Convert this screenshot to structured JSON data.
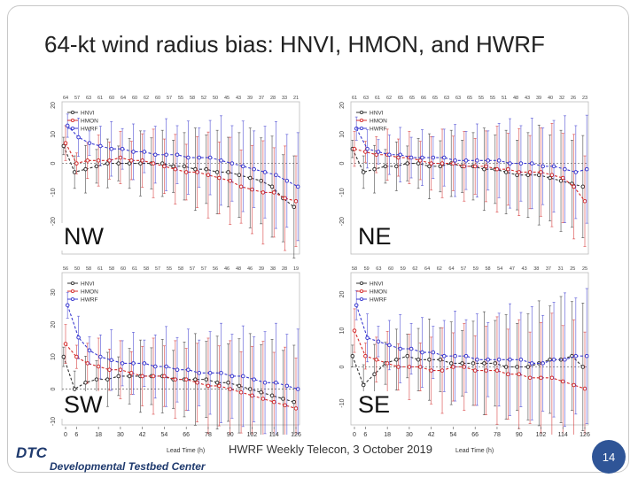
{
  "slide": {
    "title": "64-kt wind radius bias: HNVI, HMON, and HWRF",
    "footer": "HWRF Weekly Telecon, 3 October 2019",
    "page_number": "14",
    "logo_abbrev": "DTC",
    "logo_name": "Developmental Testbed Center",
    "lead_time_label": "Lead Time (h)"
  },
  "colors": {
    "HNVI": "#333333",
    "HMON": "#d42b2b",
    "HWRF": "#3a3ad0",
    "accent": "#2f5597"
  },
  "chart_data": [
    {
      "type": "line",
      "title": "NW",
      "x": [
        0,
        6,
        12,
        18,
        24,
        30,
        36,
        42,
        48,
        54,
        60,
        66,
        72,
        78,
        84,
        90,
        96,
        102,
        108,
        114,
        120,
        126
      ],
      "ylim": [
        -30,
        20
      ],
      "yticks": [
        "20",
        "10",
        "0",
        "-10",
        "-20"
      ],
      "top_counts": [
        "64",
        "57",
        "63",
        "61",
        "60",
        "64",
        "60",
        "62",
        "60",
        "57",
        "55",
        "58",
        "52",
        "50",
        "45",
        "43",
        "39",
        "37",
        "28",
        "33",
        "21"
      ],
      "legend": [
        "HNVI",
        "HMON",
        "HWRF"
      ],
      "series": [
        {
          "name": "HNVI",
          "values": [
            6,
            -3,
            -2,
            -1,
            0,
            0,
            0,
            0,
            0,
            0,
            -1,
            -1,
            -2,
            -2,
            -3,
            -3,
            -4,
            -5,
            -6,
            -8,
            -12,
            -15
          ]
        },
        {
          "name": "HMON",
          "values": [
            7,
            0,
            1,
            1,
            1,
            2,
            1,
            1,
            0,
            -1,
            -2,
            -3,
            -3,
            -4,
            -5,
            -6,
            -8,
            -9,
            -10,
            -10,
            -12,
            -13
          ]
        },
        {
          "name": "HWRF",
          "values": [
            13,
            9,
            7,
            6,
            5,
            5,
            4,
            4,
            3,
            3,
            3,
            2,
            2,
            2,
            1,
            0,
            -1,
            -2,
            -3,
            -4,
            -6,
            -8
          ]
        }
      ]
    },
    {
      "type": "line",
      "title": "NE",
      "x": [
        0,
        6,
        12,
        18,
        24,
        30,
        36,
        42,
        48,
        54,
        60,
        66,
        72,
        78,
        84,
        90,
        96,
        102,
        108,
        114,
        120,
        126
      ],
      "ylim": [
        -30,
        20
      ],
      "yticks": [
        "20",
        "10",
        "0",
        "-10",
        "-20"
      ],
      "top_counts": [
        "61",
        "63",
        "61",
        "62",
        "65",
        "65",
        "66",
        "65",
        "63",
        "63",
        "65",
        "55",
        "55",
        "51",
        "48",
        "43",
        "39",
        "40",
        "32",
        "26",
        "23"
      ],
      "legend": [
        "HNVI",
        "HMON",
        "HWRF"
      ],
      "series": [
        {
          "name": "HNVI",
          "values": [
            5,
            -3,
            -2,
            -1,
            -1,
            0,
            0,
            -1,
            -1,
            0,
            -1,
            -1,
            -2,
            -2,
            -3,
            -4,
            -4,
            -4,
            -5,
            -6,
            -7,
            -8
          ]
        },
        {
          "name": "HMON",
          "values": [
            5,
            4,
            3,
            3,
            2,
            2,
            1,
            0,
            0,
            0,
            -1,
            -1,
            -1,
            -2,
            -2,
            -3,
            -3,
            -3,
            -4,
            -5,
            -8,
            -13
          ]
        },
        {
          "name": "HWRF",
          "values": [
            12,
            5,
            4,
            3,
            3,
            2,
            2,
            2,
            2,
            1,
            1,
            1,
            1,
            1,
            0,
            0,
            0,
            -1,
            -1,
            -2,
            -3,
            -2
          ]
        }
      ]
    },
    {
      "type": "line",
      "title": "SW",
      "x": [
        0,
        6,
        12,
        18,
        24,
        30,
        36,
        42,
        48,
        54,
        60,
        66,
        72,
        78,
        84,
        90,
        96,
        102,
        108,
        114,
        120,
        126
      ],
      "ylim": [
        -10,
        35
      ],
      "yticks": [
        "30",
        "20",
        "10",
        "0",
        "-10"
      ],
      "top_counts": [
        "56",
        "50",
        "58",
        "61",
        "58",
        "60",
        "61",
        "58",
        "57",
        "55",
        "58",
        "57",
        "57",
        "56",
        "46",
        "48",
        "46",
        "39",
        "38",
        "28",
        "19"
      ],
      "legend": [
        "HNVI",
        "HMON",
        "HWRF"
      ],
      "series": [
        {
          "name": "HNVI",
          "values": [
            10,
            0,
            2,
            3,
            3,
            4,
            4,
            4,
            4,
            4,
            3,
            3,
            3,
            3,
            2,
            2,
            1,
            0,
            -1,
            -2,
            -3,
            -4
          ]
        },
        {
          "name": "HMON",
          "values": [
            14,
            10,
            8,
            7,
            6,
            6,
            5,
            4,
            4,
            4,
            3,
            3,
            2,
            1,
            1,
            0,
            -1,
            -2,
            -3,
            -4,
            -5,
            -6
          ]
        },
        {
          "name": "HWRF",
          "values": [
            26,
            16,
            12,
            10,
            9,
            8,
            8,
            8,
            7,
            7,
            6,
            6,
            5,
            5,
            5,
            4,
            4,
            3,
            2,
            2,
            1,
            0
          ]
        }
      ]
    },
    {
      "type": "line",
      "title": "SE",
      "x": [
        0,
        6,
        12,
        18,
        24,
        30,
        36,
        42,
        48,
        54,
        60,
        66,
        72,
        78,
        84,
        90,
        96,
        102,
        108,
        114,
        120,
        126
      ],
      "ylim": [
        -15,
        25
      ],
      "yticks": [
        "20",
        "10",
        "0",
        "-10"
      ],
      "top_counts": [
        "58",
        "59",
        "63",
        "60",
        "59",
        "62",
        "64",
        "62",
        "64",
        "57",
        "59",
        "58",
        "54",
        "47",
        "43",
        "38",
        "37",
        "31",
        "25",
        "25"
      ],
      "legend": [
        "HNVI",
        "HMON",
        "HWRF"
      ],
      "series": [
        {
          "name": "HNVI",
          "values": [
            3,
            -5,
            -2,
            1,
            2,
            3,
            2,
            2,
            2,
            1,
            1,
            1,
            1,
            1,
            0,
            0,
            0,
            1,
            2,
            2,
            3,
            0
          ]
        },
        {
          "name": "HMON",
          "values": [
            10,
            3,
            2,
            1,
            0,
            0,
            0,
            -1,
            -1,
            0,
            0,
            -1,
            -1,
            -1,
            -2,
            -2,
            -3,
            -3,
            -3,
            -4,
            -5,
            -6
          ]
        },
        {
          "name": "HWRF",
          "values": [
            17,
            8,
            7,
            6,
            5,
            5,
            4,
            4,
            3,
            3,
            3,
            2,
            2,
            2,
            2,
            2,
            1,
            1,
            2,
            2,
            3,
            3
          ]
        }
      ]
    }
  ],
  "bottom_axis": {
    "ticks": [
      "0",
      "6",
      "18",
      "30",
      "42",
      "54",
      "66",
      "78",
      "90",
      "102",
      "114",
      "126"
    ]
  }
}
